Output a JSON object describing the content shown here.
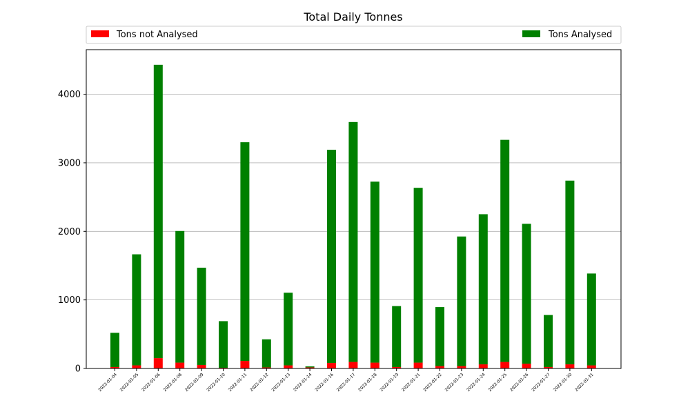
{
  "chart_data": {
    "type": "bar",
    "stacked": true,
    "title": "Total Daily Tonnes",
    "xlabel": "",
    "ylabel": "",
    "ylim": [
      0,
      4650
    ],
    "yticks": [
      0,
      1000,
      2000,
      3000,
      4000
    ],
    "grid": "horizontal",
    "legend_placement": "top, spanning width (left and right entries)",
    "categories": [
      "2022-01-04",
      "2022-01-05",
      "2022-01-06",
      "2022-01-08",
      "2022-01-09",
      "2022-01-10",
      "2022-01-11",
      "2022-01-12",
      "2022-01-13",
      "2022-01-14",
      "2022-01-16",
      "2022-01-17",
      "2022-01-18",
      "2022-01-19",
      "2022-01-21",
      "2022-01-22",
      "2022-01-23",
      "2022-01-24",
      "2022-01-25",
      "2022-01-26",
      "2022-01-27",
      "2022-01-30",
      "2022-01-31"
    ],
    "series": [
      {
        "name": "Tons not Analysed",
        "color": "#ff0000",
        "values": [
          20,
          45,
          150,
          85,
          50,
          10,
          110,
          15,
          45,
          15,
          80,
          95,
          85,
          20,
          85,
          35,
          35,
          60,
          95,
          70,
          20,
          60,
          45
        ]
      },
      {
        "name": "Tons Analysed",
        "color": "#008000",
        "values": [
          500,
          1620,
          4280,
          1920,
          1420,
          680,
          3190,
          410,
          1060,
          15,
          3110,
          3500,
          2640,
          890,
          2550,
          860,
          1890,
          2190,
          3240,
          2040,
          760,
          2680,
          1340
        ]
      }
    ]
  }
}
